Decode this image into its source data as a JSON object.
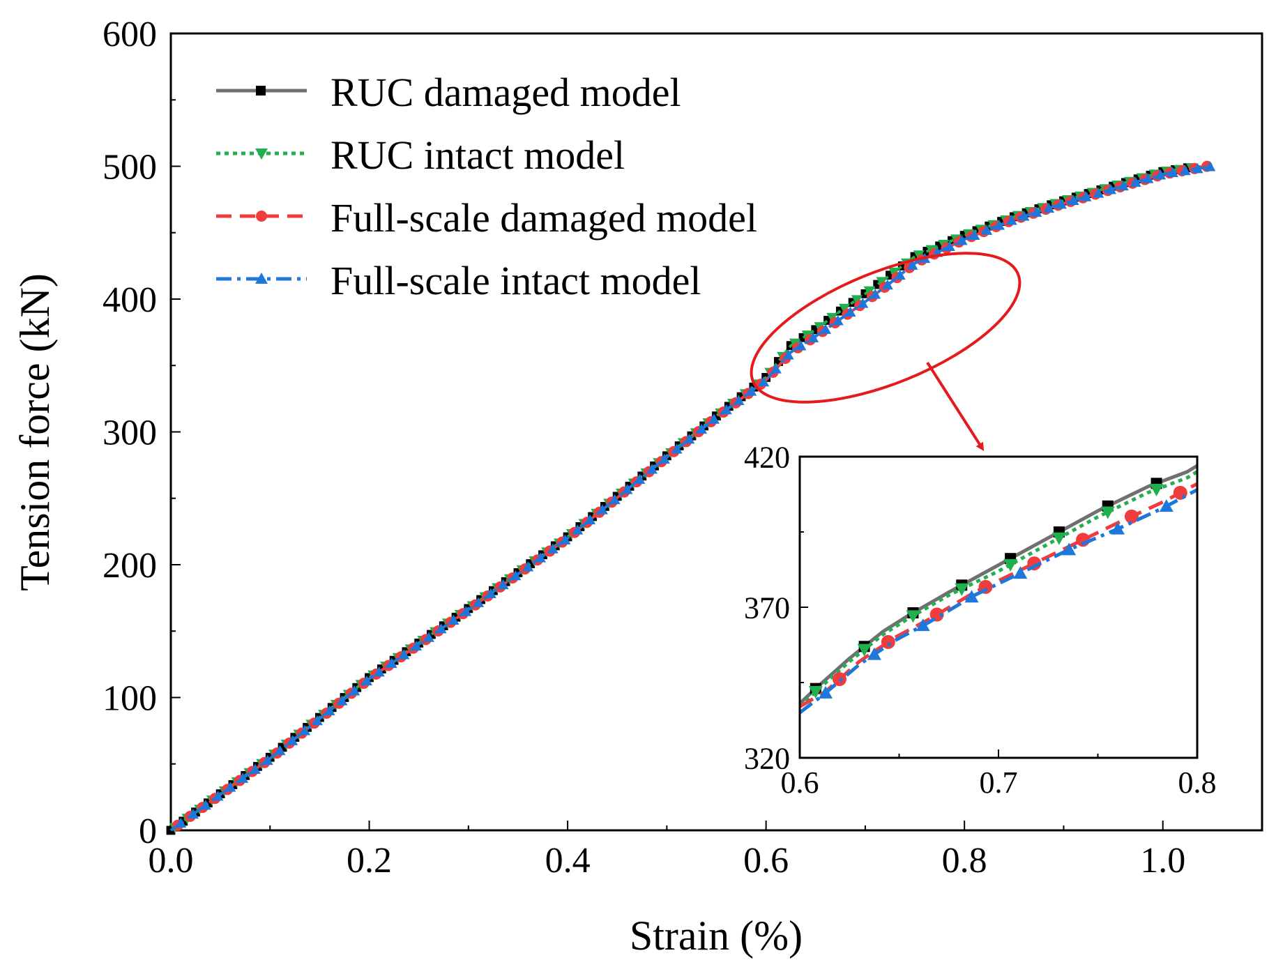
{
  "chart_data": [
    {
      "id": "main",
      "type": "line",
      "xlabel": "Strain (%)",
      "ylabel": "Tension force (kN)",
      "xlim": [
        0.0,
        1.1
      ],
      "ylim": [
        0,
        600
      ],
      "xticks": [
        0.0,
        0.2,
        0.4,
        0.6,
        0.8,
        1.0
      ],
      "xtick_labels": [
        "0.0",
        "0.2",
        "0.4",
        "0.6",
        "0.8",
        "1.0"
      ],
      "yticks": [
        0,
        100,
        200,
        300,
        400,
        500,
        600
      ],
      "ytick_labels": [
        "0",
        "100",
        "200",
        "300",
        "400",
        "500",
        "600"
      ],
      "legend_position": "top-left",
      "series": [
        {
          "name": "RUC damaged model",
          "color": "#707070",
          "line_style": "solid",
          "marker": "square",
          "x": [
            0.0,
            0.1,
            0.2,
            0.3,
            0.4,
            0.5,
            0.55,
            0.6,
            0.625,
            0.65,
            0.675,
            0.7,
            0.725,
            0.75,
            0.8,
            0.85,
            0.9,
            0.95,
            1.0,
            1.035
          ],
          "y": [
            0,
            55,
            115,
            167,
            221,
            282,
            312,
            341,
            365,
            377,
            391,
            404,
            418,
            432,
            448,
            462,
            474,
            485,
            496,
            500
          ]
        },
        {
          "name": "RUC intact model",
          "color": "#22b04e",
          "line_style": "dotted",
          "marker": "triangle-down",
          "x": [
            0.0,
            0.1,
            0.2,
            0.3,
            0.4,
            0.5,
            0.55,
            0.6,
            0.625,
            0.65,
            0.675,
            0.7,
            0.725,
            0.75,
            0.8,
            0.85,
            0.9,
            0.95,
            1.0,
            1.04
          ],
          "y": [
            0,
            55,
            115,
            167,
            221,
            282,
            312,
            341,
            365,
            377,
            391,
            404,
            418,
            432,
            448,
            462,
            474,
            485,
            496,
            500
          ]
        },
        {
          "name": "Full-scale damaged model",
          "color": "#f03c3c",
          "line_style": "dashed",
          "marker": "circle",
          "x": [
            0.0,
            0.1,
            0.2,
            0.3,
            0.4,
            0.5,
            0.55,
            0.6,
            0.625,
            0.65,
            0.675,
            0.7,
            0.725,
            0.75,
            0.8,
            0.85,
            0.9,
            0.95,
            1.0,
            1.045
          ],
          "y": [
            0,
            54,
            114,
            166,
            220,
            281,
            311,
            339,
            360,
            372,
            385,
            398,
            412,
            427,
            445,
            460,
            472,
            483,
            494,
            500
          ]
        },
        {
          "name": "Full-scale intact model",
          "color": "#1e78dc",
          "line_style": "dashdot",
          "marker": "triangle-up",
          "x": [
            0.0,
            0.1,
            0.2,
            0.3,
            0.4,
            0.5,
            0.55,
            0.6,
            0.625,
            0.65,
            0.675,
            0.7,
            0.725,
            0.75,
            0.8,
            0.85,
            0.9,
            0.95,
            1.0,
            1.05
          ],
          "y": [
            0,
            54,
            114,
            166,
            220,
            281,
            311,
            339,
            360,
            372,
            385,
            398,
            412,
            427,
            445,
            460,
            472,
            483,
            494,
            500
          ]
        }
      ],
      "annotation": "red ellipse highlighting the region 0.6–0.8 % strain, with arrow pointing to the inset"
    },
    {
      "id": "inset",
      "type": "line",
      "xlim": [
        0.6,
        0.8
      ],
      "ylim": [
        320,
        420
      ],
      "xticks": [
        0.6,
        0.7,
        0.8
      ],
      "xtick_labels": [
        "0.6",
        "0.7",
        "0.8"
      ],
      "yticks": [
        320,
        370,
        420
      ],
      "ytick_labels": [
        "320",
        "370",
        "420"
      ],
      "series": [
        {
          "name": "RUC damaged model",
          "x": [
            0.6,
            0.608,
            0.625,
            0.642,
            0.654,
            0.675,
            0.7,
            0.725,
            0.75,
            0.775,
            0.795,
            0.8
          ],
          "y": [
            338,
            343,
            353,
            362,
            367,
            375,
            384,
            393,
            402,
            410,
            415,
            417
          ]
        },
        {
          "name": "RUC intact model",
          "x": [
            0.6,
            0.608,
            0.625,
            0.642,
            0.654,
            0.675,
            0.7,
            0.725,
            0.75,
            0.775,
            0.795,
            0.8
          ],
          "y": [
            337,
            342,
            352,
            361,
            366,
            374,
            382,
            391,
            400,
            408,
            413,
            415
          ]
        },
        {
          "name": "Full-scale damaged model",
          "x": [
            0.6,
            0.613,
            0.63,
            0.648,
            0.665,
            0.688,
            0.71,
            0.735,
            0.76,
            0.783,
            0.8
          ],
          "y": [
            337,
            342,
            352,
            360,
            366,
            375,
            382,
            390,
            398,
            405,
            411
          ]
        },
        {
          "name": "Full-scale intact model",
          "x": [
            0.6,
            0.612,
            0.63,
            0.648,
            0.665,
            0.688,
            0.71,
            0.735,
            0.76,
            0.783,
            0.8
          ],
          "y": [
            335,
            341,
            351,
            359,
            365,
            374,
            381,
            389,
            396,
            403,
            409
          ]
        }
      ]
    }
  ]
}
